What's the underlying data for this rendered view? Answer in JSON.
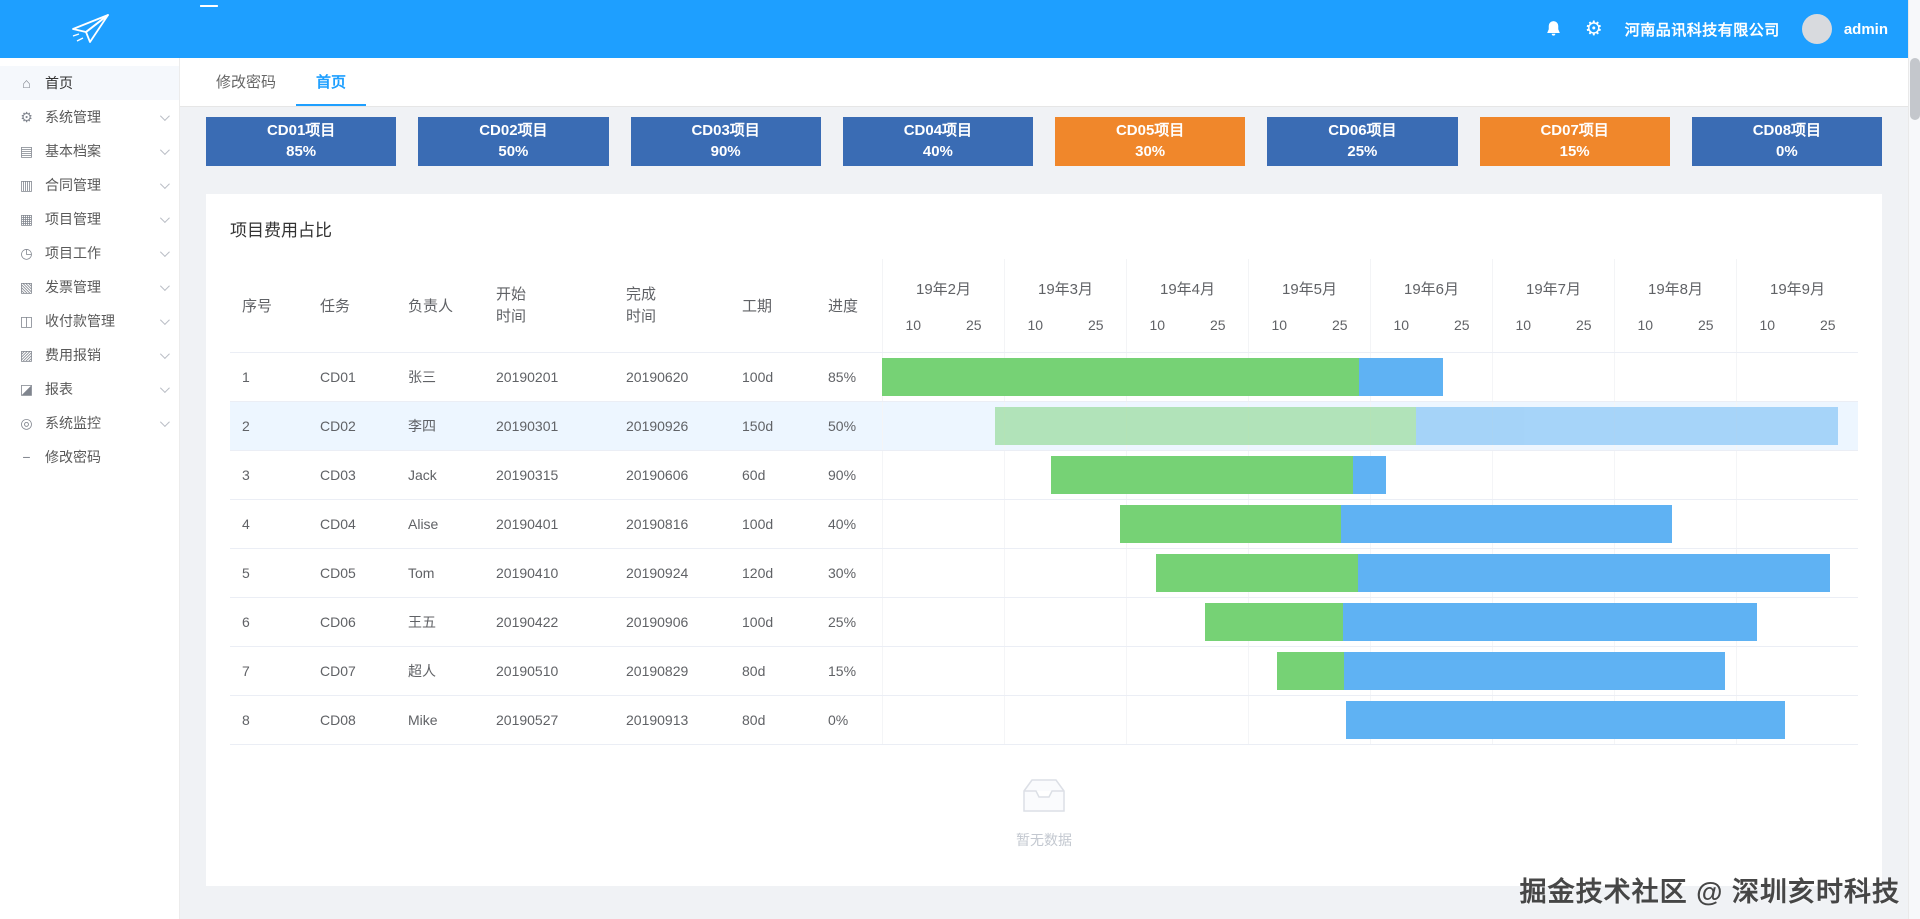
{
  "colors": {
    "accent": "#1E9FFF",
    "card_blue": "#3A6CB4",
    "card_orange": "#F0872B",
    "bar_green": "#76D275",
    "bar_blue": "#5FB2F3",
    "row_highlight": "#EDF6FF"
  },
  "header": {
    "company": "河南品讯科技有限公司",
    "user": "admin"
  },
  "sidebar": {
    "items": [
      {
        "label": "首页",
        "icon": "home",
        "glyph": "⌂",
        "active": true,
        "expandable": false
      },
      {
        "label": "系统管理",
        "icon": "system-settings",
        "glyph": "⚙",
        "active": false,
        "expandable": true
      },
      {
        "label": "基本档案",
        "icon": "archive",
        "glyph": "▤",
        "active": false,
        "expandable": true
      },
      {
        "label": "合同管理",
        "icon": "contract",
        "glyph": "▥",
        "active": false,
        "expandable": true
      },
      {
        "label": "项目管理",
        "icon": "project",
        "glyph": "▦",
        "active": false,
        "expandable": true
      },
      {
        "label": "项目工作",
        "icon": "project-work",
        "glyph": "◷",
        "active": false,
        "expandable": true
      },
      {
        "label": "发票管理",
        "icon": "invoice",
        "glyph": "▧",
        "active": false,
        "expandable": true
      },
      {
        "label": "收付款管理",
        "icon": "payment",
        "glyph": "◫",
        "active": false,
        "expandable": true
      },
      {
        "label": "费用报销",
        "icon": "expense",
        "glyph": "▨",
        "active": false,
        "expandable": true
      },
      {
        "label": "报表",
        "icon": "report",
        "glyph": "◪",
        "active": false,
        "expandable": true
      },
      {
        "label": "系统监控",
        "icon": "monitor",
        "glyph": "◎",
        "active": false,
        "expandable": true
      },
      {
        "label": "修改密码",
        "icon": "change-password",
        "glyph": "−",
        "active": false,
        "expandable": false
      }
    ]
  },
  "tabs": [
    {
      "label": "修改密码",
      "active": false
    },
    {
      "label": "首页",
      "active": true
    }
  ],
  "cards": [
    {
      "title": "CD01项目",
      "percent": "85%",
      "color": "blue"
    },
    {
      "title": "CD02项目",
      "percent": "50%",
      "color": "blue"
    },
    {
      "title": "CD03项目",
      "percent": "90%",
      "color": "blue"
    },
    {
      "title": "CD04项目",
      "percent": "40%",
      "color": "blue"
    },
    {
      "title": "CD05项目",
      "percent": "30%",
      "color": "orange"
    },
    {
      "title": "CD06项目",
      "percent": "25%",
      "color": "blue"
    },
    {
      "title": "CD07项目",
      "percent": "15%",
      "color": "orange"
    },
    {
      "title": "CD08项目",
      "percent": "0%",
      "color": "blue"
    }
  ],
  "panel": {
    "title": "项目费用占比"
  },
  "gantt": {
    "columns": [
      "序号",
      "任务",
      "负责人",
      "开始时间",
      "完成时间",
      "工期",
      "进度"
    ],
    "months": [
      "19年2月",
      "19年3月",
      "19年4月",
      "19年5月",
      "19年6月",
      "19年7月",
      "19年8月",
      "19年9月"
    ],
    "ticks": [
      "10",
      "25"
    ],
    "timeline_range": {
      "start": "20190201",
      "end": "20191001"
    },
    "rows": [
      {
        "seq": "1",
        "task": "CD01",
        "owner": "张三",
        "start": "20190201",
        "end": "20190620",
        "duration": "100d",
        "progress": "85%",
        "highlight": false
      },
      {
        "seq": "2",
        "task": "CD02",
        "owner": "李四",
        "start": "20190301",
        "end": "20190926",
        "duration": "150d",
        "progress": "50%",
        "highlight": true
      },
      {
        "seq": "3",
        "task": "CD03",
        "owner": "Jack",
        "start": "20190315",
        "end": "20190606",
        "duration": "60d",
        "progress": "90%",
        "highlight": false
      },
      {
        "seq": "4",
        "task": "CD04",
        "owner": "Alise",
        "start": "20190401",
        "end": "20190816",
        "duration": "100d",
        "progress": "40%",
        "highlight": false
      },
      {
        "seq": "5",
        "task": "CD05",
        "owner": "Tom",
        "start": "20190410",
        "end": "20190924",
        "duration": "120d",
        "progress": "30%",
        "highlight": false
      },
      {
        "seq": "6",
        "task": "CD06",
        "owner": "王五",
        "start": "20190422",
        "end": "20190906",
        "duration": "100d",
        "progress": "25%",
        "highlight": false
      },
      {
        "seq": "7",
        "task": "CD07",
        "owner": "超人",
        "start": "20190510",
        "end": "20190829",
        "duration": "80d",
        "progress": "15%",
        "highlight": false
      },
      {
        "seq": "8",
        "task": "CD08",
        "owner": "Mike",
        "start": "20190527",
        "end": "20190913",
        "duration": "80d",
        "progress": "0%",
        "highlight": false
      }
    ]
  },
  "empty": {
    "text": "暂无数据"
  },
  "watermark": "掘金技术社区 @ 深圳亥时科技"
}
